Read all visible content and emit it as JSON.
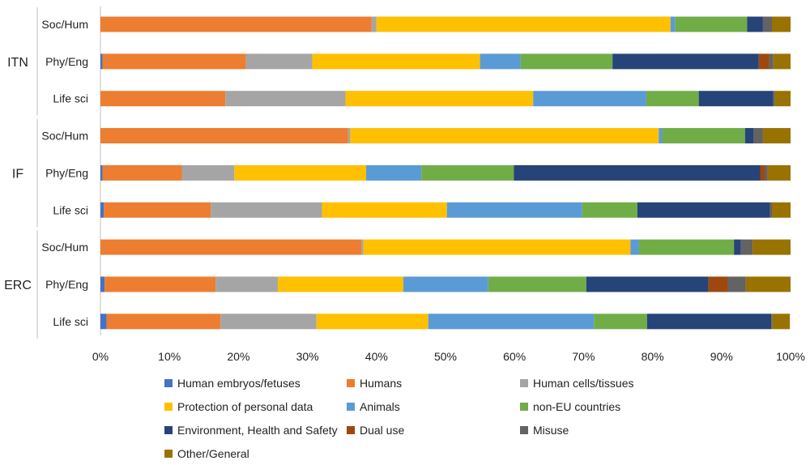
{
  "chart_data": {
    "type": "bar",
    "orientation": "horizontal",
    "stacked": "percent",
    "xlim": [
      0,
      100
    ],
    "x_ticks": [
      "0%",
      "10%",
      "20%",
      "30%",
      "40%",
      "50%",
      "60%",
      "70%",
      "80%",
      "90%",
      "100%"
    ],
    "grid": false,
    "legend_position": "bottom",
    "groups": [
      {
        "name": "ITN",
        "categories": [
          "Soc/Hum",
          "Phy/Eng",
          "Life sci"
        ]
      },
      {
        "name": "IF",
        "categories": [
          "Soc/Hum",
          "Phy/Eng",
          "Life sci"
        ]
      },
      {
        "name": "ERC",
        "categories": [
          "Soc/Hum",
          "Phy/Eng",
          "Life sci"
        ]
      }
    ],
    "series": [
      {
        "name": "Human embryos/fetuses",
        "color": "#4472C4",
        "values": [
          0,
          0.3,
          0,
          0,
          0.3,
          0.5,
          0,
          0.6,
          0.9
        ]
      },
      {
        "name": "Humans",
        "color": "#ED7D31",
        "values": [
          39.3,
          20.8,
          18.1,
          35.9,
          11.5,
          15.5,
          37.8,
          16.1,
          16.5
        ]
      },
      {
        "name": "Human cells/tissues",
        "color": "#A5A5A5",
        "values": [
          0.7,
          9.6,
          17.4,
          0.3,
          7.6,
          16.1,
          0.3,
          9.0,
          13.9
        ]
      },
      {
        "name": "Protection of personal data",
        "color": "#FFC000",
        "values": [
          42.6,
          24.3,
          27.2,
          44.7,
          19.1,
          18.1,
          38.7,
          18.2,
          16.2
        ]
      },
      {
        "name": "Animals",
        "color": "#5B9BD5",
        "values": [
          0.7,
          5.9,
          16.4,
          0.5,
          8.0,
          19.6,
          1.2,
          12.3,
          24.0
        ]
      },
      {
        "name": "non-EU countries",
        "color": "#70AD47",
        "values": [
          10.4,
          13.3,
          7.6,
          12.0,
          13.4,
          8.0,
          13.8,
          14.2,
          7.7
        ]
      },
      {
        "name": "Environment, Health and Safety",
        "color": "#264478",
        "values": [
          2.3,
          21.2,
          10.8,
          1.2,
          35.7,
          19.2,
          1.0,
          17.7,
          18.0
        ]
      },
      {
        "name": "Dual use",
        "color": "#9E480E",
        "values": [
          0,
          1.5,
          0,
          0,
          0.7,
          0,
          0,
          2.8,
          0
        ]
      },
      {
        "name": "Misuse",
        "color": "#636363",
        "values": [
          1.3,
          0.6,
          0.2,
          1.4,
          0.4,
          0.3,
          1.7,
          2.6,
          0.2
        ]
      },
      {
        "name": "Other/General",
        "color": "#997300",
        "values": [
          2.7,
          2.5,
          2.3,
          4.0,
          3.3,
          2.7,
          5.5,
          6.5,
          2.5
        ]
      }
    ]
  }
}
